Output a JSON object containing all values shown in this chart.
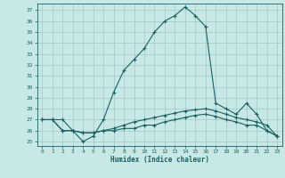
{
  "xlabel": "Humidex (Indice chaleur)",
  "background_color": "#c8e8e8",
  "grid_color": "#a0c8c8",
  "line_color": "#1a6060",
  "xlim": [
    -0.5,
    23.5
  ],
  "ylim": [
    24.6,
    37.6
  ],
  "yticks": [
    25,
    26,
    27,
    28,
    29,
    30,
    31,
    32,
    33,
    34,
    35,
    36,
    37
  ],
  "xticks": [
    0,
    1,
    2,
    3,
    4,
    5,
    6,
    7,
    8,
    9,
    10,
    11,
    12,
    13,
    14,
    15,
    16,
    17,
    18,
    19,
    20,
    21,
    22,
    23
  ],
  "series1_x": [
    0,
    1,
    2,
    3,
    4,
    5,
    6,
    7,
    8,
    9,
    10,
    11,
    12,
    13,
    14,
    15,
    16,
    17,
    18,
    19,
    20,
    21,
    22,
    23
  ],
  "series1_y": [
    27.0,
    27.0,
    27.0,
    26.0,
    25.0,
    25.5,
    27.0,
    29.5,
    31.5,
    32.5,
    33.5,
    35.0,
    36.0,
    36.5,
    37.3,
    36.5,
    35.5,
    28.5,
    28.0,
    27.5,
    28.5,
    27.5,
    26.0,
    25.5
  ],
  "series2_x": [
    0,
    1,
    2,
    3,
    4,
    5,
    6,
    7,
    8,
    9,
    10,
    11,
    12,
    13,
    14,
    15,
    16,
    17,
    18,
    19,
    20,
    21,
    22,
    23
  ],
  "series2_y": [
    27.0,
    27.0,
    26.0,
    26.0,
    25.8,
    25.8,
    26.0,
    26.2,
    26.5,
    26.8,
    27.0,
    27.2,
    27.4,
    27.6,
    27.8,
    27.9,
    28.0,
    27.8,
    27.5,
    27.2,
    27.0,
    26.8,
    26.5,
    25.5
  ],
  "series3_x": [
    0,
    1,
    2,
    3,
    4,
    5,
    6,
    7,
    8,
    9,
    10,
    11,
    12,
    13,
    14,
    15,
    16,
    17,
    18,
    19,
    20,
    21,
    22,
    23
  ],
  "series3_y": [
    27.0,
    27.0,
    26.0,
    26.0,
    25.8,
    25.8,
    26.0,
    26.0,
    26.2,
    26.2,
    26.5,
    26.5,
    26.8,
    27.0,
    27.2,
    27.4,
    27.5,
    27.3,
    27.0,
    26.8,
    26.5,
    26.5,
    26.0,
    25.5
  ]
}
